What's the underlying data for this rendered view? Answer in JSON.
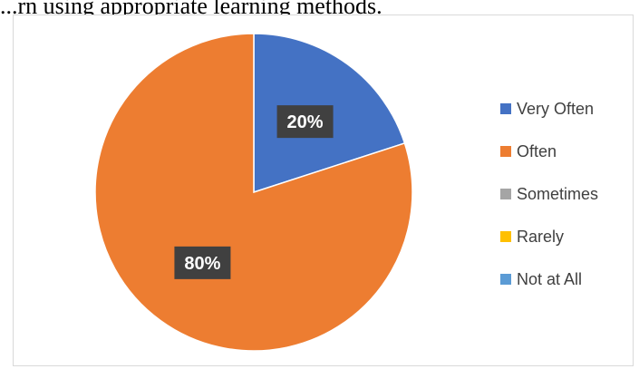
{
  "caption": "...rn using appropriate learning methods.",
  "chart_data": {
    "type": "pie",
    "categories": [
      "Very Often",
      "Often",
      "Sometimes",
      "Rarely",
      "Not at All"
    ],
    "values": [
      20,
      80,
      0,
      0,
      0
    ],
    "data_labels": [
      "20%",
      "80%",
      "",
      "",
      ""
    ],
    "colors": [
      "#4472c4",
      "#ed7d31",
      "#a5a5a5",
      "#ffc000",
      "#5b9bd5"
    ],
    "legend_position": "right",
    "start_angle": "12 o'clock, clockwise"
  }
}
